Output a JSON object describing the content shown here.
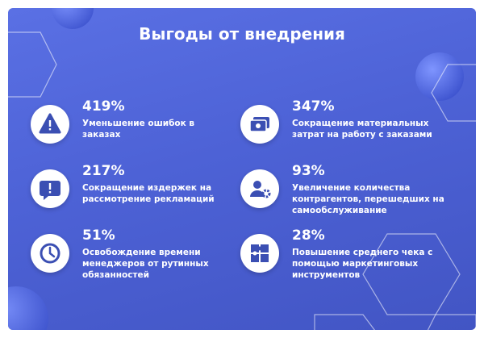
{
  "title": "Выгоды от внедрения",
  "items": [
    {
      "value": "419%",
      "lines": [
        "Уменьшение ошибок в",
        "заказах"
      ]
    },
    {
      "value": "347%",
      "lines": [
        "Сокращение материальных",
        "затрат на работу с заказами"
      ]
    },
    {
      "value": "217%",
      "lines": [
        "Сокращение издержек на",
        "рассмотрение рекламаций"
      ]
    },
    {
      "value": "93%",
      "lines": [
        "Увеличение количества",
        "контрагентов, перешедших на",
        "самообслуживание"
      ]
    },
    {
      "value": "51%",
      "lines": [
        "Освобождение времени",
        "менеджеров от рутинных",
        "обязанностей"
      ]
    },
    {
      "value": "28%",
      "lines": [
        "Повышение среднего чека с",
        "помощью маркетинговых",
        "инструментов"
      ]
    }
  ]
}
